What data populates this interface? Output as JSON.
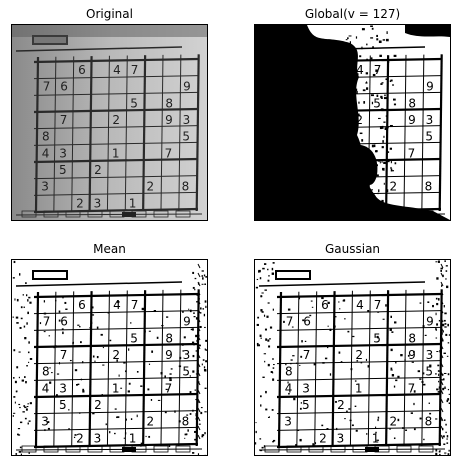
{
  "figure": {
    "panels": [
      {
        "id": "original",
        "title": "Original",
        "style": "gray"
      },
      {
        "id": "global",
        "title": "Global(v = 127)",
        "style": "global"
      },
      {
        "id": "mean",
        "title": "Mean",
        "style": "adaptive"
      },
      {
        "id": "gaussian",
        "title": "Gaussian",
        "style": "adaptive"
      }
    ]
  },
  "sudoku": {
    "cells": [
      {
        "r": 0,
        "c": 2,
        "v": "6"
      },
      {
        "r": 0,
        "c": 4,
        "v": "4"
      },
      {
        "r": 0,
        "c": 5,
        "v": "7"
      },
      {
        "r": 1,
        "c": 0,
        "v": "7"
      },
      {
        "r": 1,
        "c": 1,
        "v": "6"
      },
      {
        "r": 1,
        "c": 8,
        "v": "9"
      },
      {
        "r": 2,
        "c": 5,
        "v": "5"
      },
      {
        "r": 2,
        "c": 7,
        "v": "8"
      },
      {
        "r": 3,
        "c": 1,
        "v": "7"
      },
      {
        "r": 3,
        "c": 4,
        "v": "2"
      },
      {
        "r": 3,
        "c": 7,
        "v": "9"
      },
      {
        "r": 3,
        "c": 8,
        "v": "3"
      },
      {
        "r": 4,
        "c": 0,
        "v": "8"
      },
      {
        "r": 4,
        "c": 8,
        "v": "5"
      },
      {
        "r": 5,
        "c": 0,
        "v": "4"
      },
      {
        "r": 5,
        "c": 1,
        "v": "3"
      },
      {
        "r": 5,
        "c": 4,
        "v": "1"
      },
      {
        "r": 5,
        "c": 7,
        "v": "7"
      },
      {
        "r": 6,
        "c": 1,
        "v": "5"
      },
      {
        "r": 6,
        "c": 3,
        "v": "2"
      },
      {
        "r": 7,
        "c": 0,
        "v": "3"
      },
      {
        "r": 7,
        "c": 6,
        "v": "2"
      },
      {
        "r": 7,
        "c": 8,
        "v": "8"
      },
      {
        "r": 8,
        "c": 2,
        "v": "2"
      },
      {
        "r": 8,
        "c": 3,
        "v": "3"
      },
      {
        "r": 8,
        "c": 5,
        "v": "1"
      }
    ]
  }
}
